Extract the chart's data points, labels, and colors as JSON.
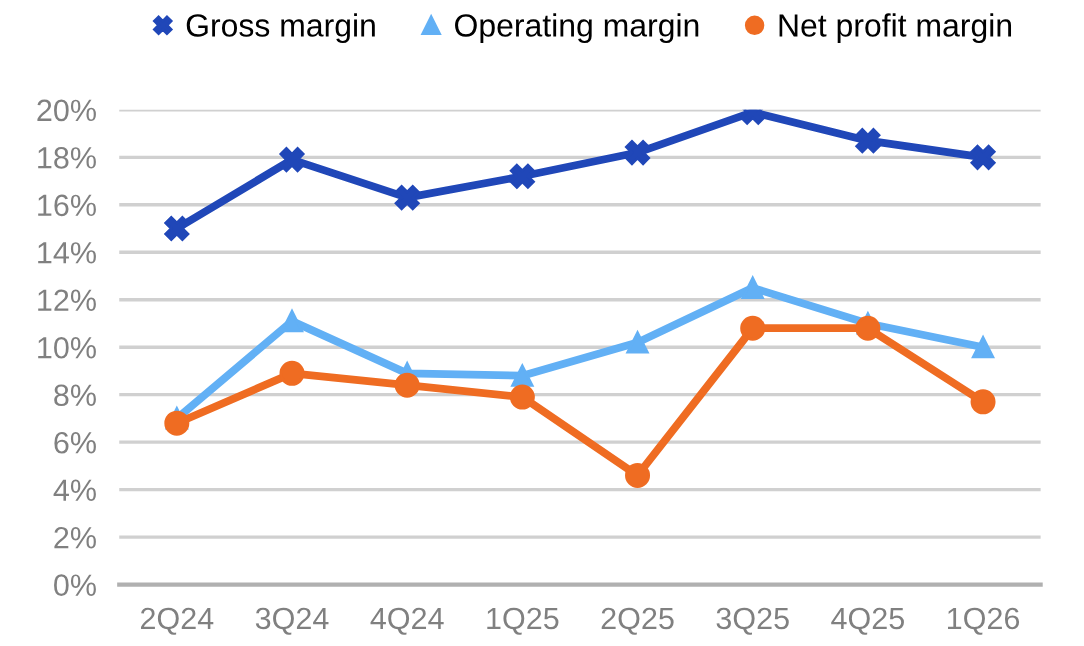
{
  "chart_data": {
    "type": "line",
    "categories": [
      "2Q24",
      "3Q24",
      "4Q24",
      "1Q25",
      "2Q25",
      "3Q25",
      "4Q25",
      "1Q26"
    ],
    "series": [
      {
        "name": "Gross margin",
        "color": "#2047b8",
        "marker": "cross",
        "values": [
          15.0,
          17.9,
          16.3,
          17.2,
          18.2,
          19.9,
          18.7,
          18.0
        ]
      },
      {
        "name": "Operating margin",
        "color": "#62b0f5",
        "marker": "triangle",
        "values": [
          7.0,
          11.1,
          8.9,
          8.8,
          10.2,
          12.5,
          11.0,
          10.0
        ]
      },
      {
        "name": "Net profit margin",
        "color": "#ef6c22",
        "marker": "circle",
        "values": [
          6.8,
          8.9,
          8.4,
          7.9,
          4.6,
          10.8,
          10.8,
          7.7
        ]
      }
    ],
    "ylim": [
      0,
      20
    ],
    "yticks": [
      {
        "value": 0,
        "label": "0%"
      },
      {
        "value": 2,
        "label": "2%"
      },
      {
        "value": 4,
        "label": "4%"
      },
      {
        "value": 6,
        "label": "6%"
      },
      {
        "value": 8,
        "label": "8%"
      },
      {
        "value": 10,
        "label": "10%"
      },
      {
        "value": 12,
        "label": "12%"
      },
      {
        "value": 14,
        "label": "14%"
      },
      {
        "value": 16,
        "label": "16%"
      },
      {
        "value": 18,
        "label": "18%"
      },
      {
        "value": 20,
        "label": "20%"
      }
    ],
    "grid": "y",
    "legend": "top",
    "line_style": "solid"
  }
}
